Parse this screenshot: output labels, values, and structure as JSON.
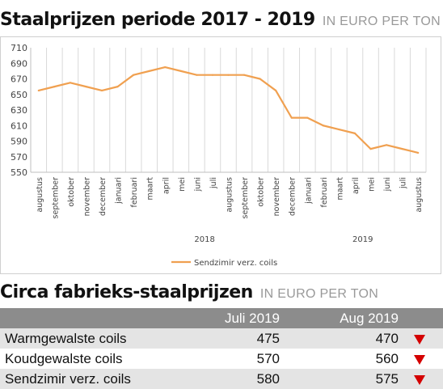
{
  "header1": {
    "title": "Staalprijzen periode 2017 - 2019",
    "subtitle": "IN EURO PER TON"
  },
  "header2": {
    "title": "Circa fabrieks-staalprijzen",
    "subtitle": "IN EURO PER TON"
  },
  "chart_data": {
    "type": "line",
    "categories": [
      "augustus",
      "september",
      "oktober",
      "november",
      "december",
      "januari",
      "februari",
      "maart",
      "april",
      "mei",
      "juni",
      "juli",
      "augustus",
      "september",
      "oktober",
      "november",
      "december",
      "januari",
      "februari",
      "maart",
      "april",
      "mei",
      "juni",
      "juli",
      "augustus"
    ],
    "year_labels": [
      "2018",
      "2019"
    ],
    "series": [
      {
        "name": "Sendzimir verz. coils",
        "color": "#f0a050",
        "values": [
          655,
          660,
          665,
          660,
          655,
          660,
          675,
          680,
          685,
          680,
          675,
          675,
          675,
          675,
          670,
          655,
          620,
          620,
          610,
          605,
          600,
          580,
          585,
          580,
          575
        ]
      }
    ],
    "ylim": [
      550,
      710
    ],
    "yticks": [
      550,
      570,
      590,
      610,
      630,
      650,
      670,
      690,
      710
    ],
    "grid": "vertical",
    "legend": "bottom"
  },
  "table": {
    "columns": [
      "Juli 2019",
      "Aug 2019"
    ],
    "rows": [
      {
        "name": "Warmgewalste coils",
        "jul": "475",
        "aug": "470",
        "trend": "down"
      },
      {
        "name": "Koudgewalste coils",
        "jul": "570",
        "aug": "560",
        "trend": "down"
      },
      {
        "name": "Sendzimir verz. coils",
        "jul": "580",
        "aug": "575",
        "trend": "down"
      }
    ],
    "arrow_color": "#d40000"
  }
}
